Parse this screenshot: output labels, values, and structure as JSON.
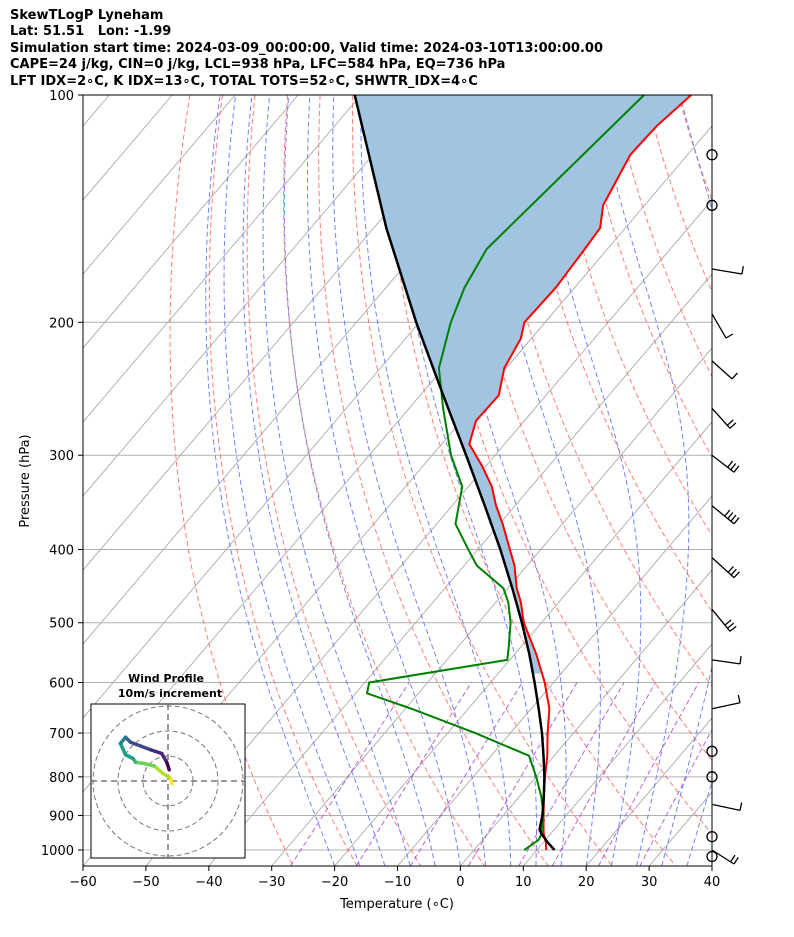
{
  "header": {
    "line1": "SkewTLogP Lyneham",
    "line2": "Lat: 51.51   Lon: -1.99",
    "line3": "Simulation start time: 2024-03-09_00:00:00, Valid time: 2024-03-10T13:00:00.00",
    "line4": "CAPE=24 j/kg, CIN=0 j/kg, LCL=938 hPa, LFC=584 hPa, EQ=736 hPa",
    "line5": "LFT IDX=2∘C, K IDX=13∘C, TOTAL TOTS=52∘C, SHWTR_IDX=4∘C"
  },
  "chart_data": {
    "type": "line",
    "xlabel": "Temperature (∘C)",
    "ylabel": "Pressure (hPa)",
    "xlim": [
      -60,
      40
    ],
    "ylim_hpa": [
      1050,
      100
    ],
    "y_scale": "log",
    "grid": true,
    "x_ticks": [
      -60,
      -50,
      -40,
      -30,
      -20,
      -10,
      0,
      10,
      20,
      30,
      40
    ],
    "x_tick_labels": [
      "−60",
      "−50",
      "−40",
      "−30",
      "−20",
      "−10",
      "0",
      "10",
      "20",
      "30",
      "40"
    ],
    "y_ticks": [
      100,
      200,
      300,
      400,
      500,
      600,
      700,
      800,
      900,
      1000
    ],
    "y_tick_labels": [
      "100",
      "200",
      "300",
      "400",
      "500",
      "600",
      "700",
      "800",
      "900",
      "1000"
    ],
    "colors": {
      "temperature": "#ff0000",
      "dewpoint": "#008000",
      "parcel": "#000000",
      "cape_fill": "#a1c4e0",
      "dry_adiabats": "#ff6666",
      "moist_adiabats": "#6677ee",
      "isotherms": "#aaaaaa",
      "mixing_ratio": "#9933cc"
    },
    "series": [
      {
        "key": "temperature",
        "pressure": [
          1000,
          975,
          950,
          925,
          900,
          850,
          800,
          750,
          700,
          650,
          600,
          550,
          500,
          470,
          450,
          420,
          400,
          370,
          350,
          330,
          310,
          290,
          270,
          250,
          230,
          210,
          200,
          180,
          160,
          150,
          140,
          130,
          120,
          110,
          100
        ],
        "temp": [
          11.5,
          10.3,
          8.8,
          7.6,
          6.4,
          3.9,
          1.4,
          -1.1,
          -4.1,
          -7.1,
          -11.4,
          -16.6,
          -22.8,
          -26.0,
          -28.6,
          -32.0,
          -34.9,
          -39.5,
          -43.0,
          -46.3,
          -50.6,
          -55.6,
          -57.7,
          -57.5,
          -60.3,
          -61.7,
          -63.3,
          -63.0,
          -63.6,
          -64.0,
          -66.6,
          -67.8,
          -69.1,
          -68.8,
          -67.5
        ]
      },
      {
        "key": "dewpoint",
        "pressure": [
          1000,
          970,
          950,
          930,
          900,
          850,
          800,
          750,
          700,
          650,
          620,
          600,
          560,
          540,
          500,
          470,
          450,
          420,
          400,
          370,
          330,
          300,
          260,
          230,
          200,
          180,
          160,
          100
        ],
        "temp": [
          8.0,
          8.9,
          8.5,
          7.6,
          6.4,
          3.5,
          0.0,
          -4.0,
          -15.6,
          -29.0,
          -38.2,
          -39.3,
          -20.4,
          -21.8,
          -24.9,
          -28.0,
          -30.7,
          -38.0,
          -41.5,
          -47.0,
          -51.0,
          -57.0,
          -64.6,
          -70.7,
          -75.0,
          -77.5,
          -79.2,
          -75.0
        ]
      },
      {
        "key": "parcel",
        "pressure": [
          1000,
          975,
          950,
          938,
          900,
          850,
          800,
          750,
          700,
          650,
          600,
          550,
          500,
          450,
          400,
          350,
          300,
          250,
          200,
          150,
          100
        ],
        "temp": [
          12.8,
          10.5,
          8.4,
          7.6,
          6.2,
          3.9,
          1.3,
          -1.7,
          -5.0,
          -8.8,
          -13.0,
          -17.7,
          -23.1,
          -29.3,
          -36.4,
          -44.8,
          -54.6,
          -66.3,
          -80.5,
          -98.0,
          -121.0
        ]
      }
    ],
    "wind_barbs_pressure": [
      120,
      140,
      170,
      195,
      225,
      260,
      300,
      350,
      410,
      480,
      560,
      650,
      740,
      800,
      870,
      960,
      1000,
      1020
    ],
    "inset": {
      "title": "Wind Profile",
      "subtitle": "10m/s increment",
      "rings_ms": [
        10,
        20,
        30
      ],
      "hodograph_u": [
        1.5,
        1.3,
        0.5,
        -2.0,
        -5.5,
        -9.5,
        -13.0,
        -14.0,
        -17.0,
        -19.0,
        -17.0,
        -16.5,
        -15.0,
        -11.0,
        -7.0,
        -2.5,
        -0.5,
        0.5
      ],
      "hodograph_v": [
        -1.0,
        0.5,
        1.5,
        3.0,
        6.0,
        7.0,
        7.5,
        9.0,
        10.5,
        15.0,
        17.5,
        17.0,
        15.5,
        14.0,
        12.5,
        11.0,
        7.5,
        4.5
      ]
    }
  }
}
